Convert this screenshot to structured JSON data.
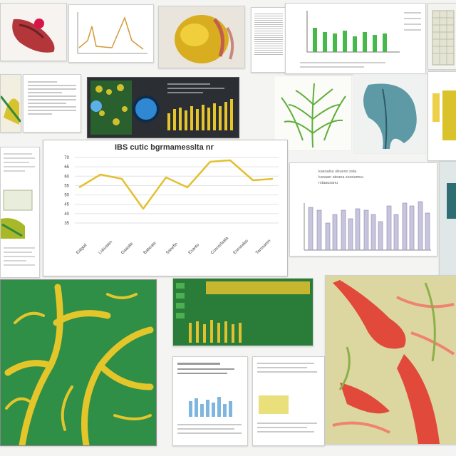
{
  "main_chart": {
    "title": "IBS cutic bgrmamesslta nr",
    "x_labels": [
      "Ealgtal",
      "Lokusten",
      "Gaaalte",
      "Babeate",
      "Sanefin",
      "Exanto",
      "Cosnsrlaata",
      "Enrnsalas",
      "Tarnsaren"
    ],
    "y_labels": [
      "70",
      "65",
      "60",
      "55",
      "50",
      "45",
      "40",
      "35"
    ],
    "line_color": "#e3c02f"
  },
  "side_chart": {
    "title_lines": [
      "kaesalsu  obueno  ssta",
      "kanaan  ateana  sansamuu",
      "rstaausanu"
    ]
  }
}
